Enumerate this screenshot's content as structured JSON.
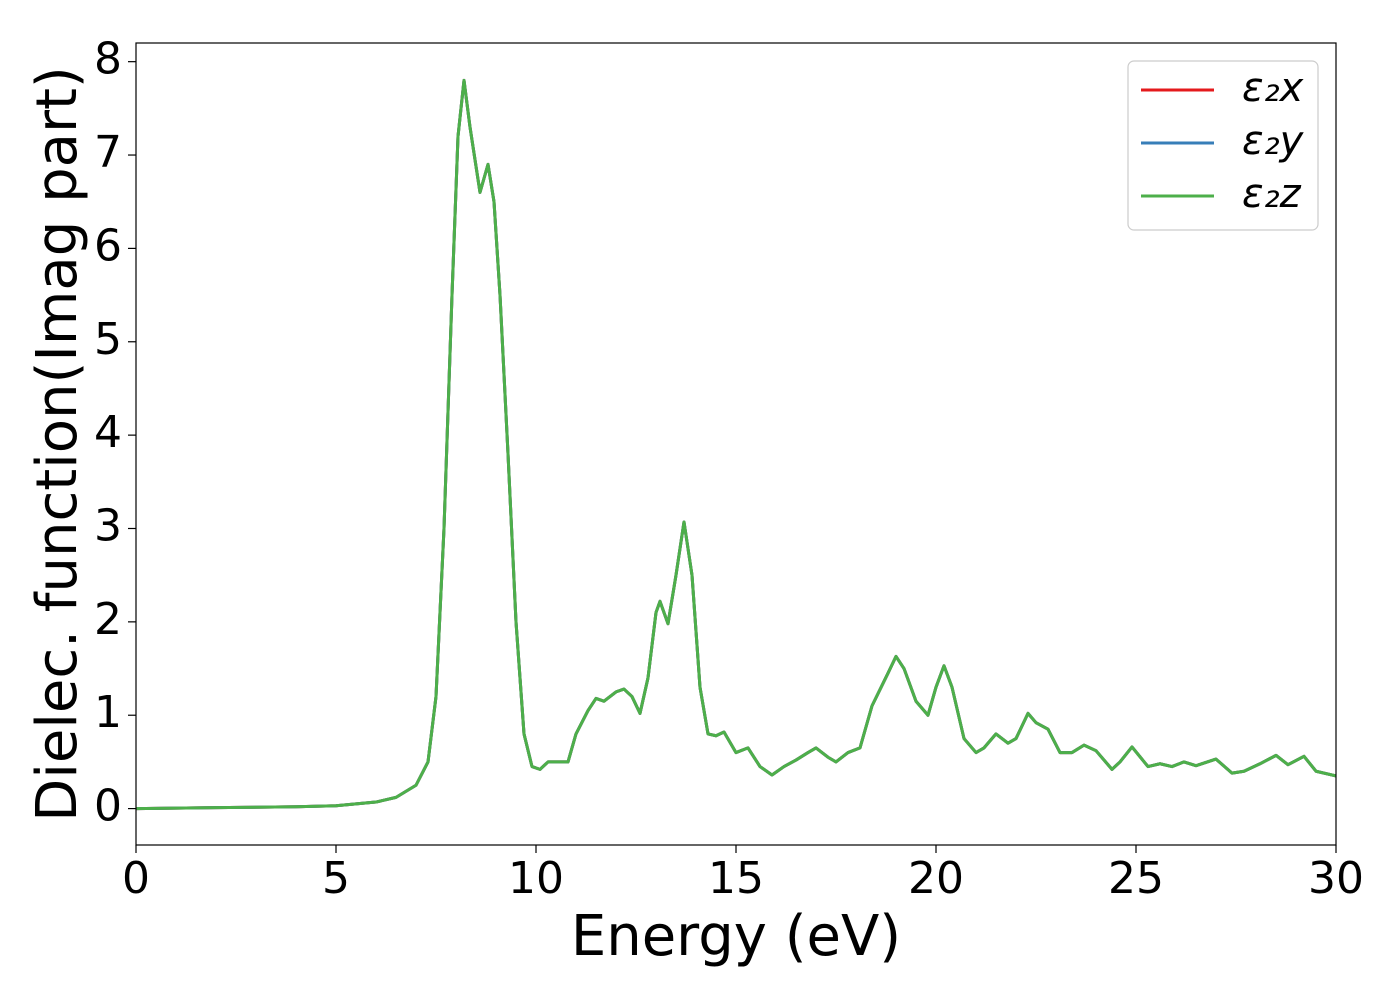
{
  "chart_data": {
    "type": "line",
    "x_label": "Energy (eV)",
    "y_label": "Dielec. function(Imag part)",
    "x": [
      0,
      2,
      4,
      5,
      6,
      6.5,
      7,
      7.3,
      7.5,
      7.7,
      7.9,
      8.05,
      8.2,
      8.35,
      8.6,
      8.8,
      8.95,
      9.1,
      9.3,
      9.5,
      9.7,
      9.9,
      10.1,
      10.3,
      10.6,
      10.8,
      11.0,
      11.3,
      11.5,
      11.7,
      12.0,
      12.2,
      12.4,
      12.6,
      12.8,
      13.0,
      13.1,
      13.3,
      13.5,
      13.7,
      13.9,
      14.1,
      14.3,
      14.5,
      14.7,
      15.0,
      15.3,
      15.6,
      15.9,
      16.2,
      16.5,
      16.8,
      17.0,
      17.3,
      17.5,
      17.8,
      18.1,
      18.4,
      18.8,
      19.0,
      19.2,
      19.5,
      19.8,
      20.0,
      20.2,
      20.4,
      20.7,
      21.0,
      21.2,
      21.5,
      21.8,
      22.0,
      22.3,
      22.5,
      22.8,
      23.1,
      23.4,
      23.7,
      24.0,
      24.4,
      24.6,
      24.9,
      25.3,
      25.6,
      25.9,
      26.2,
      26.5,
      27.0,
      27.4,
      27.7,
      28.1,
      28.5,
      28.8,
      29.2,
      29.5,
      30.0
    ],
    "series": [
      {
        "name": "ε₂x",
        "color": "#e41a1c",
        "values": [
          0.0,
          0.01,
          0.02,
          0.03,
          0.07,
          0.12,
          0.25,
          0.5,
          1.2,
          3.0,
          5.5,
          7.2,
          7.8,
          7.3,
          6.6,
          6.9,
          6.5,
          5.5,
          3.8,
          2.0,
          0.8,
          0.45,
          0.42,
          0.5,
          0.5,
          0.5,
          0.8,
          1.05,
          1.18,
          1.15,
          1.25,
          1.28,
          1.2,
          1.02,
          1.4,
          2.1,
          2.22,
          1.98,
          2.5,
          3.07,
          2.5,
          1.3,
          0.8,
          0.78,
          0.82,
          0.6,
          0.65,
          0.45,
          0.36,
          0.45,
          0.52,
          0.6,
          0.65,
          0.55,
          0.5,
          0.6,
          0.65,
          1.1,
          1.45,
          1.63,
          1.5,
          1.15,
          1.0,
          1.3,
          1.53,
          1.3,
          0.75,
          0.6,
          0.65,
          0.8,
          0.7,
          0.75,
          1.02,
          0.92,
          0.85,
          0.6,
          0.6,
          0.68,
          0.62,
          0.42,
          0.5,
          0.66,
          0.45,
          0.48,
          0.45,
          0.5,
          0.46,
          0.53,
          0.38,
          0.4,
          0.48,
          0.57,
          0.47,
          0.56,
          0.4,
          0.35
        ]
      },
      {
        "name": "ε₂y",
        "color": "#377eb8",
        "values": [
          0.0,
          0.01,
          0.02,
          0.03,
          0.07,
          0.12,
          0.25,
          0.5,
          1.2,
          3.0,
          5.5,
          7.2,
          7.8,
          7.3,
          6.6,
          6.9,
          6.5,
          5.5,
          3.8,
          2.0,
          0.8,
          0.45,
          0.42,
          0.5,
          0.5,
          0.5,
          0.8,
          1.05,
          1.18,
          1.15,
          1.25,
          1.28,
          1.2,
          1.02,
          1.4,
          2.1,
          2.22,
          1.98,
          2.5,
          3.07,
          2.5,
          1.3,
          0.8,
          0.78,
          0.82,
          0.6,
          0.65,
          0.45,
          0.36,
          0.45,
          0.52,
          0.6,
          0.65,
          0.55,
          0.5,
          0.6,
          0.65,
          1.1,
          1.45,
          1.63,
          1.5,
          1.15,
          1.0,
          1.3,
          1.53,
          1.3,
          0.75,
          0.6,
          0.65,
          0.8,
          0.7,
          0.75,
          1.02,
          0.92,
          0.85,
          0.6,
          0.6,
          0.68,
          0.62,
          0.42,
          0.5,
          0.66,
          0.45,
          0.48,
          0.45,
          0.5,
          0.46,
          0.53,
          0.38,
          0.4,
          0.48,
          0.57,
          0.47,
          0.56,
          0.4,
          0.35
        ]
      },
      {
        "name": "ε₂z",
        "color": "#4daf4a",
        "values": [
          0.0,
          0.01,
          0.02,
          0.03,
          0.07,
          0.12,
          0.25,
          0.5,
          1.2,
          3.0,
          5.5,
          7.2,
          7.8,
          7.3,
          6.6,
          6.9,
          6.5,
          5.5,
          3.8,
          2.0,
          0.8,
          0.45,
          0.42,
          0.5,
          0.5,
          0.5,
          0.8,
          1.05,
          1.18,
          1.15,
          1.25,
          1.28,
          1.2,
          1.02,
          1.4,
          2.1,
          2.22,
          1.98,
          2.5,
          3.07,
          2.5,
          1.3,
          0.8,
          0.78,
          0.82,
          0.6,
          0.65,
          0.45,
          0.36,
          0.45,
          0.52,
          0.6,
          0.65,
          0.55,
          0.5,
          0.6,
          0.65,
          1.1,
          1.45,
          1.63,
          1.5,
          1.15,
          1.0,
          1.3,
          1.53,
          1.3,
          0.75,
          0.6,
          0.65,
          0.8,
          0.7,
          0.75,
          1.02,
          0.92,
          0.85,
          0.6,
          0.6,
          0.68,
          0.62,
          0.42,
          0.5,
          0.66,
          0.45,
          0.48,
          0.45,
          0.5,
          0.46,
          0.53,
          0.38,
          0.4,
          0.48,
          0.57,
          0.47,
          0.56,
          0.4,
          0.35
        ]
      }
    ],
    "xlim": [
      0,
      30
    ],
    "xticks": [
      0,
      5,
      10,
      15,
      20,
      25,
      30
    ],
    "ylim": [
      -0.39,
      8.2
    ],
    "yticks": [
      0,
      1,
      2,
      3,
      4,
      5,
      6,
      7,
      8
    ],
    "grid": false,
    "legend": "upper right"
  }
}
